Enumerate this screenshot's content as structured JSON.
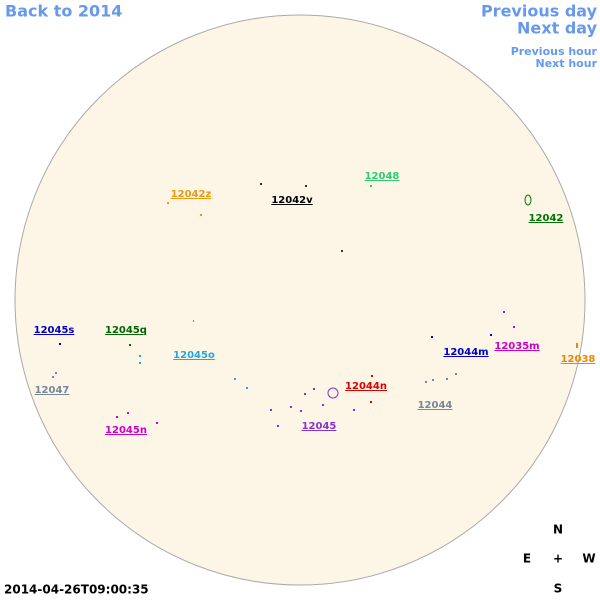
{
  "nav": {
    "back": "Back to 2014",
    "previous_day": "Previous day",
    "next_day": "Next day",
    "previous_hour": "Previous hour",
    "next_hour": "Next hour"
  },
  "regions": [
    {
      "label": "12048",
      "color": "#2ecc71"
    },
    {
      "label": "12042z",
      "color": "#ee9911"
    },
    {
      "label": "12042v",
      "color": "#000000"
    },
    {
      "label": "12042",
      "color": "#007700"
    },
    {
      "label": "12045s",
      "color": "#0000cc"
    },
    {
      "label": "12045q",
      "color": "#006600"
    },
    {
      "label": "12045o",
      "color": "#22aadd"
    },
    {
      "label": "12044m",
      "color": "#0000cc"
    },
    {
      "label": "12035m",
      "color": "#cc00cc"
    },
    {
      "label": "12038",
      "color": "#ee8800"
    },
    {
      "label": "12047",
      "color": "#778899"
    },
    {
      "label": "12044n",
      "color": "#dd0000"
    },
    {
      "label": "12044",
      "color": "#778899"
    },
    {
      "label": "12045",
      "color": "#8833cc"
    },
    {
      "label": "12045n",
      "color": "#cc00cc"
    }
  ],
  "compass": {
    "north": "N",
    "east": "E",
    "center": "+",
    "west": "W",
    "south": "S"
  },
  "timestamp": "2014-04-26T09:00:35"
}
